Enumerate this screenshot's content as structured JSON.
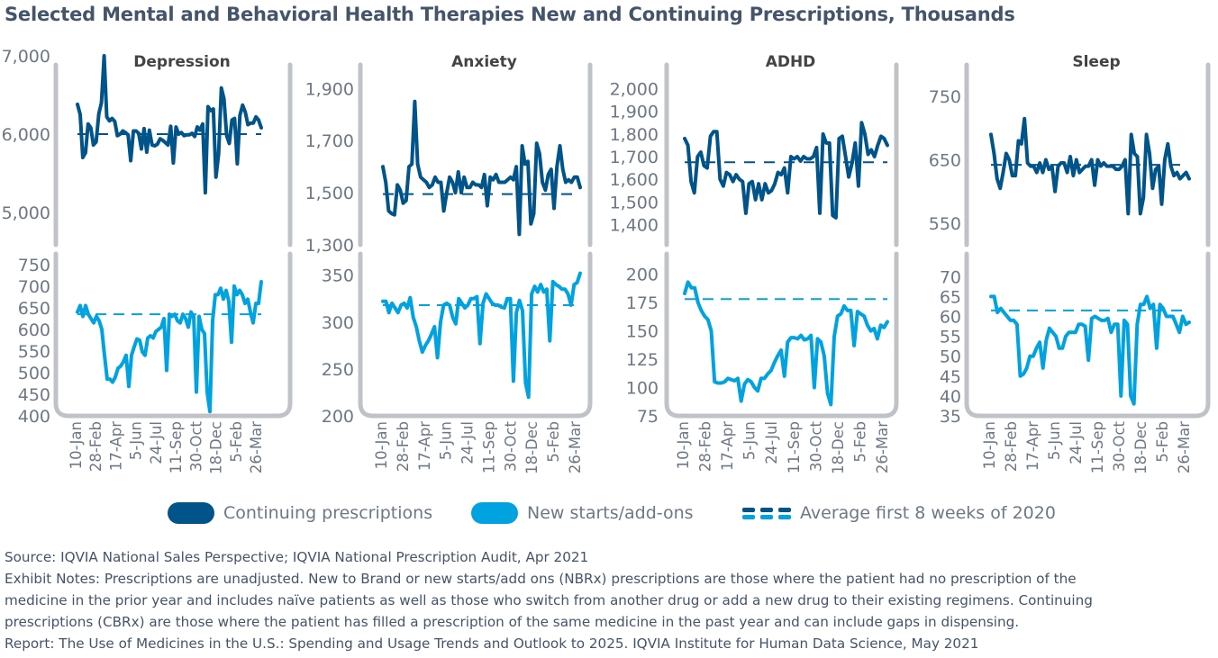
{
  "title": "Selected Mental and Behavioral Health Therapies New and Continuing Prescriptions, Thousands",
  "legend": {
    "continuing": "Continuing prescriptions",
    "new": "New starts/add-ons",
    "average": "Average first 8 weeks of 2020"
  },
  "colors": {
    "continuing": "#00548a",
    "new": "#00a3e0",
    "axis": "#bfc3c8",
    "tick_text": "#6d7885",
    "panel_title": "#444444"
  },
  "notes": [
    "Source: IQVIA National Sales Perspective; IQVIA National Prescription Audit, Apr 2021",
    "Exhibit Notes: Prescriptions are unadjusted. New to Brand or new starts/add ons (NBRx) prescriptions are those where the patient had no prescription of the",
    "medicine in the prior year and includes naïve patients as well as those who switch from another drug or add a new drug to their existing regimens. Continuing",
    "prescriptions (CBRx) are those where the patient has filled a prescription of the same medicine in the past year and can include gaps in dispensing.",
    "Report: The Use of Medicines in the U.S.: Spending and Usage Trends and Outlook to 2025. IQVIA Institute for Human Data Science, May 2021"
  ],
  "chart_data": [
    {
      "type": "line",
      "panel": "Depression",
      "x_tick_labels": [
        "10-Jan",
        "28-Feb",
        "17-Apr",
        "5-Jun",
        "24-Jul",
        "11-Sep",
        "30-Oct",
        "18-Dec",
        "5-Feb",
        "26-Mar"
      ],
      "continuing": {
        "ylim": [
          4700,
          7000
        ],
        "y_ticks": [
          "7,000",
          "6,000",
          "5,000"
        ],
        "y_tick_values": [
          7000,
          6000,
          5000
        ],
        "average": 6000,
        "values": [
          6380,
          6250,
          5700,
          5760,
          6130,
          6080,
          5860,
          5900,
          6260,
          6400,
          7000,
          6220,
          6170,
          6200,
          6160,
          5980,
          6000,
          6040,
          6020,
          5990,
          5660,
          6040,
          6040,
          6010,
          5810,
          6070,
          5770,
          6050,
          5860,
          5850,
          5870,
          5940,
          5920,
          5890,
          5860,
          6100,
          5630,
          6090,
          6000,
          6020,
          5980,
          5990,
          5990,
          6010,
          5970,
          6090,
          6050,
          6130,
          5250,
          6350,
          6300,
          6320,
          5450,
          5750,
          6590,
          6450,
          5980,
          5880,
          6180,
          6200,
          5620,
          6240,
          6370,
          6280,
          6120,
          6140,
          6140,
          6220,
          6180,
          6080
        ]
      },
      "new": {
        "ylim": [
          400,
          760
        ],
        "y_ticks": [
          "750",
          "700",
          "650",
          "600",
          "550",
          "500",
          "450",
          "400"
        ],
        "y_tick_values": [
          750,
          700,
          650,
          600,
          550,
          500,
          450,
          400
        ],
        "average": 635,
        "values": [
          640,
          655,
          630,
          655,
          635,
          625,
          615,
          630,
          620,
          600,
          540,
          485,
          485,
          478,
          490,
          510,
          515,
          525,
          540,
          468,
          540,
          560,
          578,
          575,
          548,
          540,
          580,
          585,
          580,
          595,
          600,
          605,
          625,
          505,
          635,
          630,
          635,
          620,
          615,
          635,
          625,
          605,
          640,
          630,
          455,
          630,
          600,
          590,
          455,
          410,
          620,
          680,
          680,
          695,
          670,
          690,
          665,
          570,
          700,
          680,
          690,
          680,
          660,
          670,
          640,
          615,
          660,
          660,
          710
        ]
      },
      "xlabel": "",
      "ylabel": ""
    },
    {
      "type": "line",
      "panel": "Anxiety",
      "x_tick_labels": [
        "10-Jan",
        "28-Feb",
        "17-Apr",
        "5-Jun",
        "24-Jul",
        "11-Sep",
        "30-Oct",
        "18-Dec",
        "5-Feb",
        "26-Mar"
      ],
      "continuing": {
        "ylim": [
          1300,
          1960
        ],
        "y_ticks": [
          "1,900",
          "1,700",
          "1,500",
          "1,300"
        ],
        "y_tick_values": [
          1900,
          1700,
          1500,
          1300
        ],
        "average": 1495,
        "values": [
          1600,
          1540,
          1430,
          1420,
          1415,
          1530,
          1510,
          1460,
          1470,
          1600,
          1610,
          1850,
          1610,
          1560,
          1550,
          1540,
          1520,
          1530,
          1560,
          1540,
          1540,
          1430,
          1500,
          1560,
          1540,
          1500,
          1580,
          1500,
          1560,
          1520,
          1520,
          1540,
          1530,
          1530,
          1520,
          1570,
          1450,
          1560,
          1550,
          1570,
          1540,
          1540,
          1540,
          1550,
          1560,
          1550,
          1600,
          1340,
          1680,
          1610,
          1620,
          1380,
          1420,
          1690,
          1650,
          1540,
          1510,
          1570,
          1590,
          1440,
          1600,
          1680,
          1590,
          1540,
          1550,
          1540,
          1560,
          1560,
          1520
        ]
      },
      "new": {
        "ylim": [
          200,
          365
        ],
        "y_ticks": [
          "350",
          "300",
          "250",
          "200"
        ],
        "y_tick_values": [
          350,
          300,
          250,
          200
        ],
        "average": 318,
        "values": [
          322,
          322,
          310,
          320,
          315,
          310,
          318,
          320,
          315,
          326,
          305,
          295,
          280,
          268,
          275,
          280,
          287,
          295,
          262,
          300,
          318,
          320,
          318,
          305,
          298,
          325,
          320,
          315,
          318,
          325,
          325,
          327,
          277,
          320,
          330,
          325,
          320,
          318,
          318,
          316,
          315,
          325,
          325,
          237,
          310,
          323,
          312,
          235,
          220,
          330,
          338,
          332,
          340,
          332,
          335,
          280,
          343,
          340,
          338,
          335,
          335,
          330,
          318,
          340,
          342,
          352
        ]
      },
      "xlabel": "",
      "ylabel": ""
    },
    {
      "type": "line",
      "panel": "ADHD",
      "x_tick_labels": [
        "10-Jan",
        "28-Feb",
        "17-Apr",
        "5-Jun",
        "24-Jul",
        "11-Sep",
        "30-Oct",
        "18-Dec",
        "5-Feb",
        "26-Mar"
      ],
      "continuing": {
        "ylim": [
          1350,
          2050
        ],
        "y_ticks": [
          "2,000",
          "1,900",
          "1,800",
          "1,700",
          "1,600",
          "1,500",
          "1,400"
        ],
        "y_tick_values": [
          2000,
          1900,
          1800,
          1700,
          1600,
          1500,
          1400
        ],
        "average": 1675,
        "values": [
          1780,
          1750,
          1590,
          1540,
          1700,
          1720,
          1660,
          1650,
          1790,
          1810,
          1810,
          1600,
          1570,
          1630,
          1620,
          1590,
          1620,
          1600,
          1590,
          1450,
          1580,
          1590,
          1510,
          1580,
          1510,
          1580,
          1540,
          1550,
          1580,
          1630,
          1620,
          1650,
          1540,
          1700,
          1690,
          1700,
          1680,
          1700,
          1690,
          1690,
          1700,
          1740,
          1450,
          1800,
          1760,
          1760,
          1440,
          1430,
          1780,
          1790,
          1700,
          1610,
          1670,
          1760,
          1570,
          1850,
          1800,
          1710,
          1730,
          1700,
          1750,
          1790,
          1780,
          1750
        ]
      },
      "new": {
        "ylim": [
          75,
          210
        ],
        "y_ticks": [
          "200",
          "175",
          "150",
          "125",
          "100",
          "75"
        ],
        "y_tick_values": [
          200,
          175,
          150,
          125,
          100,
          75
        ],
        "average": 178,
        "values": [
          183,
          193,
          188,
          188,
          175,
          168,
          163,
          160,
          150,
          105,
          104,
          104,
          105,
          108,
          107,
          106,
          108,
          88,
          103,
          107,
          105,
          100,
          97,
          108,
          108,
          112,
          115,
          122,
          128,
          133,
          110,
          140,
          144,
          144,
          143,
          146,
          142,
          143,
          146,
          100,
          143,
          140,
          128,
          95,
          85,
          145,
          163,
          165,
          172,
          168,
          168,
          137,
          167,
          165,
          163,
          155,
          150,
          152,
          143,
          155,
          153,
          158
        ]
      },
      "xlabel": "",
      "ylabel": ""
    },
    {
      "type": "line",
      "panel": "Sleep",
      "x_tick_labels": [
        "10-Jan",
        "28-Feb",
        "17-Apr",
        "5-Jun",
        "24-Jul",
        "11-Sep",
        "30-Oct",
        "18-Dec",
        "5-Feb",
        "26-Mar"
      ],
      "continuing": {
        "ylim": [
          530,
          780
        ],
        "y_ticks": [
          "750",
          "650",
          "550"
        ],
        "y_tick_values": [
          750,
          650,
          550
        ],
        "average": 642,
        "values": [
          690,
          660,
          620,
          605,
          630,
          660,
          650,
          625,
          625,
          680,
          675,
          715,
          645,
          640,
          640,
          630,
          645,
          630,
          650,
          635,
          640,
          600,
          640,
          645,
          645,
          630,
          655,
          625,
          650,
          630,
          635,
          640,
          640,
          650,
          610,
          650,
          640,
          645,
          640,
          640,
          640,
          635,
          635,
          640,
          650,
          565,
          690,
          660,
          655,
          565,
          590,
          690,
          660,
          605,
          635,
          640,
          580,
          650,
          675,
          640,
          625,
          630,
          620,
          625,
          630,
          620
        ]
      },
      "new": {
        "ylim": [
          35,
          73
        ],
        "y_ticks": [
          "70",
          "65",
          "60",
          "55",
          "50",
          "45",
          "40",
          "35"
        ],
        "y_tick_values": [
          70,
          65,
          60,
          55,
          50,
          45,
          40,
          35
        ],
        "average": 61.5,
        "values": [
          65,
          65,
          61,
          62,
          61,
          60,
          59,
          59,
          58,
          45,
          45.5,
          47,
          50,
          50,
          52,
          53.5,
          47,
          54,
          57,
          56,
          55,
          52,
          52,
          55,
          56,
          56,
          56,
          58,
          58,
          57.5,
          49,
          59.5,
          60,
          59.5,
          59,
          59,
          59.5,
          56,
          58,
          58,
          40,
          59,
          58,
          40,
          38,
          58,
          63,
          63,
          65,
          62,
          63,
          52,
          63,
          62,
          60,
          60,
          60,
          58,
          56,
          60,
          58,
          58.5
        ]
      },
      "xlabel": "",
      "ylabel": ""
    }
  ]
}
